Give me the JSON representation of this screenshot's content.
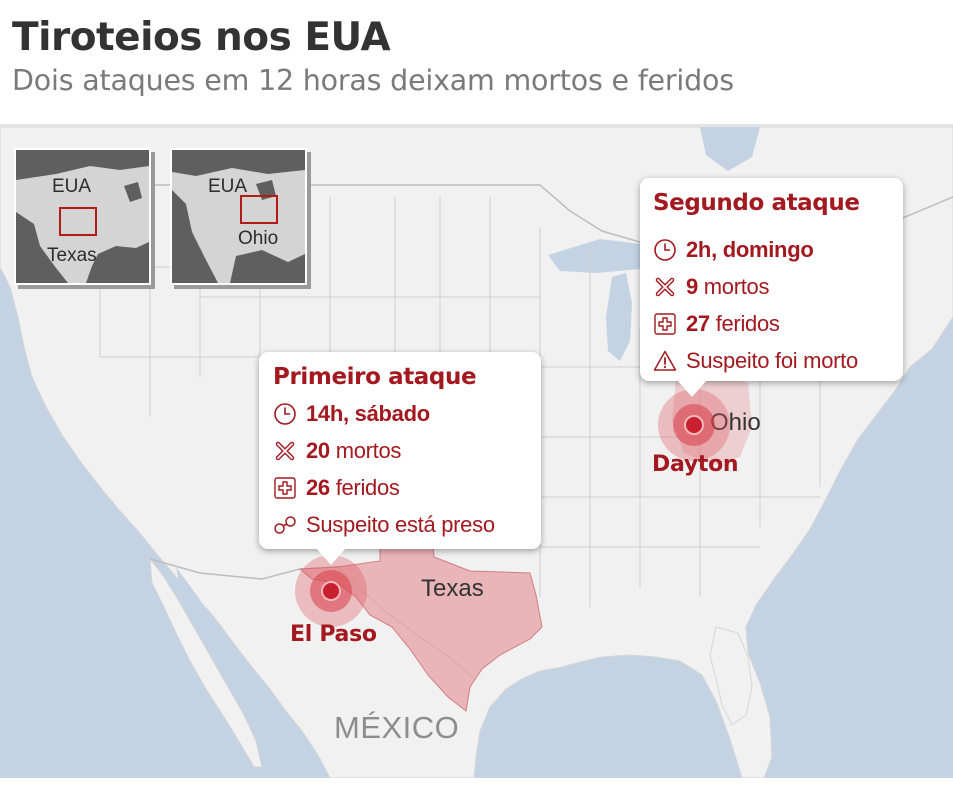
{
  "header": {
    "title": "Tiroteios nos EUA",
    "subtitle": "Dois ataques em 12 horas deixam mortos e feridos"
  },
  "insets": [
    {
      "country_label": "EUA",
      "state_label": "Texas"
    },
    {
      "country_label": "EUA",
      "state_label": "Ohio"
    }
  ],
  "map_labels": {
    "texas": "Texas",
    "ohio": "Ohio",
    "mexico": "MÉXICO",
    "el_paso": "El Paso",
    "dayton": "Dayton"
  },
  "first_attack": {
    "heading": "Primeiro ataque",
    "time": "14h, sábado",
    "deaths_count": "20",
    "deaths_word": "mortos",
    "injured_count": "26",
    "injured_word": "feridos",
    "suspect": "Suspeito está preso"
  },
  "second_attack": {
    "heading": "Segundo ataque",
    "time": "2h, domingo",
    "deaths_count": "9",
    "deaths_word": "mortos",
    "injured_count": "27",
    "injured_word": "feridos",
    "suspect": "Suspeito foi morto"
  },
  "icons": [
    "clock-icon",
    "x-icon",
    "plus-icon",
    "handcuffs-icon",
    "warning-icon"
  ],
  "colors": {
    "accent": "#a3191f",
    "land": "#f1f1f1",
    "water": "#c3d3e3",
    "texas_highlight": "#e8a6aa",
    "inset_land": "#d4d4d4",
    "inset_water": "#5f5f5f"
  }
}
